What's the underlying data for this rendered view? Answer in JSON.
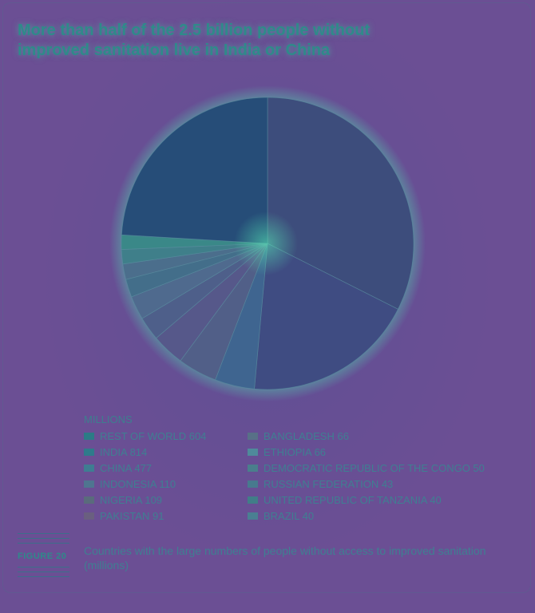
{
  "title": "More than half of the 2.5 billion people without improved sanitation live in India or China",
  "figure": {
    "label": "FIGURE 20",
    "caption": "Countries with the large numbers of people without access to improved sanitation (millions)"
  },
  "legend": {
    "units": "MILLIONS"
  },
  "chart_data": {
    "type": "pie",
    "title": "More than half of the 2.5 billion people without improved sanitation live in India or China",
    "units": "MILLIONS",
    "categories": [
      "REST OF WORLD",
      "INDIA",
      "CHINA",
      "INDONESIA",
      "NIGERIA",
      "PAKISTAN",
      "BANGLADESH",
      "ETHIOPIA",
      "DEMOCRATIC REPUBLIC OF THE CONGO",
      "RUSSIAN FEDERATION",
      "UNITED REPUBLIC OF TANZANIA",
      "BRAZIL"
    ],
    "values": [
      604,
      814,
      477,
      110,
      109,
      91,
      66,
      66,
      50,
      43,
      40,
      40
    ],
    "legend_labels": [
      "REST OF WORLD 604",
      "INDIA 814",
      "CHINA 477",
      "INDONESIA 110",
      "NIGERIA 109",
      "PAKISTAN 91",
      "BANGLADESH 66",
      "ETHIOPIA 66",
      "DEMOCRATIC REPUBLIC OF THE CONGO 50",
      "RUSSIAN FEDERATION 43",
      "UNITED REPUBLIC OF TANZANIA 40",
      "BRAZIL 40"
    ],
    "slice_order": [
      1,
      2,
      3,
      4,
      5,
      6,
      7,
      8,
      9,
      10,
      11,
      0
    ],
    "colors": [
      "#264d78",
      "#3d4d7c",
      "#3f4c82",
      "#3f6590",
      "#515f88",
      "#56588a",
      "#4e5f8a",
      "#4f6a8e",
      "#436e8a",
      "#4b6e8c",
      "#3f7f8a",
      "#3a8888"
    ],
    "legend_colors": [
      "#2c7b86",
      "#2f7b8b",
      "#3f7d92",
      "#4f7590",
      "#5a6b7c",
      "#6a5f80",
      "#587087",
      "#4f8a9b",
      "#4a7e8c",
      "#477a8e",
      "#417d88",
      "#4a7f92"
    ],
    "legend_columns": 2,
    "start_angle_deg": 0,
    "direction": "clockwise"
  }
}
